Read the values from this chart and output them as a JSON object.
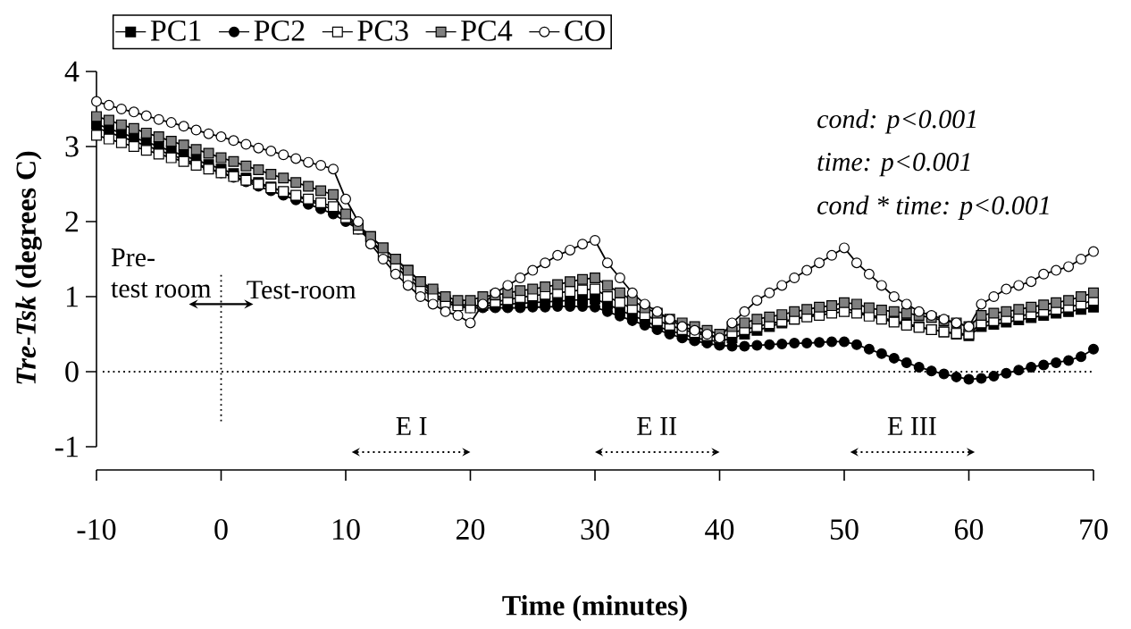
{
  "chart_data": {
    "type": "line",
    "xlabel": "Time (minutes)",
    "ylabel": "*Tre-Tsk*  (degrees C)",
    "x": [
      -10,
      -9,
      -8,
      -7,
      -6,
      -5,
      -4,
      -3,
      -2,
      -1,
      0,
      1,
      2,
      3,
      4,
      5,
      6,
      7,
      8,
      9,
      10,
      11,
      12,
      13,
      14,
      15,
      16,
      17,
      18,
      19,
      20,
      21,
      22,
      23,
      24,
      25,
      26,
      27,
      28,
      29,
      30,
      31,
      32,
      33,
      34,
      35,
      36,
      37,
      38,
      39,
      40,
      41,
      42,
      43,
      44,
      45,
      46,
      47,
      48,
      49,
      50,
      51,
      52,
      53,
      54,
      55,
      56,
      57,
      58,
      59,
      60,
      61,
      62,
      63,
      64,
      65,
      66,
      67,
      68,
      69,
      70
    ],
    "series": [
      {
        "name": "PC1",
        "color": "#000000",
        "values": [
          3.3,
          3.24,
          3.18,
          3.12,
          3.06,
          3.0,
          2.94,
          2.88,
          2.82,
          2.76,
          2.7,
          2.64,
          2.58,
          2.52,
          2.46,
          2.4,
          2.34,
          2.28,
          2.22,
          2.16,
          2.05,
          1.95,
          1.8,
          1.65,
          1.5,
          1.35,
          1.2,
          1.05,
          0.95,
          0.9,
          0.88,
          0.88,
          0.89,
          0.9,
          0.91,
          0.92,
          0.93,
          0.94,
          0.95,
          0.96,
          0.97,
          0.9,
          0.82,
          0.75,
          0.68,
          0.6,
          0.55,
          0.5,
          0.45,
          0.42,
          0.4,
          0.45,
          0.5,
          0.55,
          0.6,
          0.65,
          0.7,
          0.74,
          0.78,
          0.82,
          0.85,
          0.8,
          0.76,
          0.72,
          0.68,
          0.64,
          0.6,
          0.56,
          0.53,
          0.5,
          0.48,
          0.6,
          0.63,
          0.66,
          0.69,
          0.72,
          0.75,
          0.78,
          0.8,
          0.83,
          0.86
        ]
      },
      {
        "name": "PC2",
        "color": "#000000",
        "marker": "circle",
        "values": [
          3.25,
          3.19,
          3.13,
          3.07,
          3.01,
          2.95,
          2.89,
          2.83,
          2.77,
          2.71,
          2.65,
          2.59,
          2.53,
          2.47,
          2.41,
          2.35,
          2.29,
          2.23,
          2.17,
          2.1,
          2.0,
          1.9,
          1.75,
          1.6,
          1.45,
          1.3,
          1.15,
          1.02,
          0.92,
          0.87,
          0.85,
          0.85,
          0.85,
          0.85,
          0.85,
          0.86,
          0.86,
          0.87,
          0.87,
          0.87,
          0.86,
          0.8,
          0.74,
          0.68,
          0.62,
          0.56,
          0.5,
          0.45,
          0.41,
          0.38,
          0.35,
          0.34,
          0.34,
          0.35,
          0.36,
          0.37,
          0.38,
          0.38,
          0.39,
          0.4,
          0.4,
          0.36,
          0.3,
          0.24,
          0.18,
          0.12,
          0.06,
          0.01,
          -0.03,
          -0.07,
          -0.1,
          -0.09,
          -0.06,
          -0.02,
          0.02,
          0.06,
          0.09,
          0.12,
          0.15,
          0.2,
          0.3
        ]
      },
      {
        "name": "PC3",
        "color": "#ffffff",
        "values": [
          3.15,
          3.1,
          3.05,
          3.0,
          2.95,
          2.9,
          2.85,
          2.8,
          2.75,
          2.7,
          2.65,
          2.6,
          2.55,
          2.5,
          2.45,
          2.4,
          2.35,
          2.3,
          2.25,
          2.2,
          2.05,
          1.9,
          1.75,
          1.55,
          1.4,
          1.25,
          1.1,
          1.0,
          0.92,
          0.88,
          0.85,
          0.9,
          0.93,
          0.96,
          0.99,
          1.01,
          1.03,
          1.05,
          1.07,
          1.09,
          1.1,
          1.0,
          0.92,
          0.84,
          0.76,
          0.68,
          0.62,
          0.56,
          0.52,
          0.48,
          0.45,
          0.52,
          0.56,
          0.6,
          0.64,
          0.67,
          0.7,
          0.73,
          0.75,
          0.78,
          0.8,
          0.78,
          0.74,
          0.7,
          0.66,
          0.62,
          0.59,
          0.56,
          0.53,
          0.51,
          0.5,
          0.65,
          0.68,
          0.71,
          0.74,
          0.77,
          0.8,
          0.83,
          0.86,
          0.9,
          0.95
        ]
      },
      {
        "name": "PC4",
        "color": "#808080",
        "values": [
          3.4,
          3.35,
          3.29,
          3.24,
          3.18,
          3.13,
          3.07,
          3.02,
          2.96,
          2.91,
          2.85,
          2.8,
          2.74,
          2.69,
          2.63,
          2.58,
          2.52,
          2.47,
          2.41,
          2.36,
          2.1,
          1.95,
          1.8,
          1.65,
          1.5,
          1.35,
          1.2,
          1.1,
          1.0,
          0.95,
          0.95,
          1.0,
          1.02,
          1.05,
          1.08,
          1.1,
          1.13,
          1.16,
          1.2,
          1.23,
          1.25,
          1.15,
          1.05,
          0.95,
          0.85,
          0.78,
          0.7,
          0.65,
          0.6,
          0.55,
          0.5,
          0.6,
          0.65,
          0.7,
          0.73,
          0.76,
          0.8,
          0.83,
          0.86,
          0.88,
          0.92,
          0.9,
          0.85,
          0.82,
          0.8,
          0.78,
          0.75,
          0.72,
          0.68,
          0.65,
          0.6,
          0.75,
          0.78,
          0.8,
          0.83,
          0.86,
          0.89,
          0.92,
          0.95,
          1.0,
          1.05
        ]
      },
      {
        "name": "CO",
        "color": "#ffffff",
        "marker": "circle",
        "values": [
          3.6,
          3.55,
          3.5,
          3.46,
          3.41,
          3.36,
          3.32,
          3.27,
          3.22,
          3.17,
          3.13,
          3.08,
          3.03,
          2.98,
          2.94,
          2.89,
          2.84,
          2.79,
          2.75,
          2.7,
          2.3,
          2.0,
          1.7,
          1.5,
          1.3,
          1.15,
          1.0,
          0.9,
          0.8,
          0.75,
          0.65,
          0.9,
          1.05,
          1.15,
          1.25,
          1.35,
          1.45,
          1.55,
          1.62,
          1.7,
          1.75,
          1.45,
          1.25,
          1.05,
          0.9,
          0.8,
          0.7,
          0.6,
          0.55,
          0.5,
          0.45,
          0.65,
          0.8,
          0.95,
          1.05,
          1.15,
          1.25,
          1.35,
          1.45,
          1.55,
          1.65,
          1.45,
          1.3,
          1.15,
          1.0,
          0.9,
          0.8,
          0.75,
          0.7,
          0.65,
          0.6,
          0.9,
          1.0,
          1.1,
          1.15,
          1.2,
          1.3,
          1.35,
          1.4,
          1.5,
          1.6
        ]
      }
    ],
    "xlim": [
      -10,
      70
    ],
    "ylim": [
      -1,
      4
    ],
    "xticks": [
      -10,
      0,
      10,
      20,
      30,
      40,
      50,
      60,
      70
    ],
    "yticks": [
      -1,
      0,
      1,
      2,
      3,
      4
    ],
    "legend": "top",
    "line_style": "solid",
    "marker": "square",
    "ref_lines": [
      {
        "axis": "y",
        "value": 0,
        "line_style": "dotted"
      }
    ],
    "annotations": [
      "cond: p<0.001",
      "time: p<0.001",
      "cond * time: p<0.001",
      "Pre-",
      "test room",
      "Test-room",
      "E I",
      "E II",
      "E III"
    ]
  }
}
